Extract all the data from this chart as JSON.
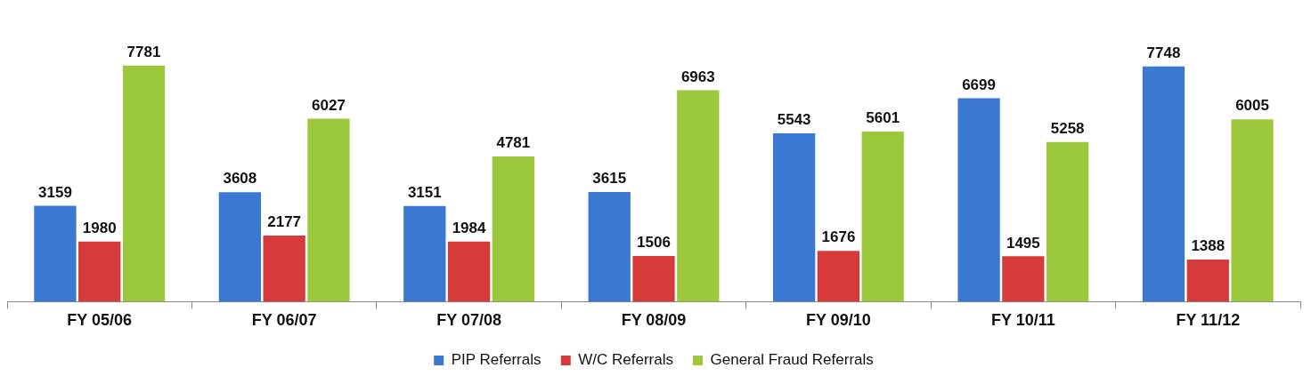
{
  "chart_data": {
    "type": "bar",
    "categories": [
      "FY 05/06",
      "FY 06/07",
      "FY 07/08",
      "FY 08/09",
      "FY 09/10",
      "FY 10/11",
      "FY 11/12"
    ],
    "series": [
      {
        "name": "PIP Referrals",
        "color": "#3b78d2",
        "values": [
          3159,
          3608,
          3151,
          3615,
          5543,
          6699,
          7748
        ]
      },
      {
        "name": "W/C Referrals",
        "color": "#d63a3a",
        "values": [
          1980,
          2177,
          1984,
          1506,
          1676,
          1495,
          1388
        ]
      },
      {
        "name": "General Fraud Referrals",
        "color": "#9cc83c",
        "values": [
          7781,
          6027,
          4781,
          6963,
          5601,
          5258,
          6005
        ]
      }
    ],
    "tick_labels": "x",
    "data_labels": true,
    "grid": false,
    "legend": "bottom"
  }
}
